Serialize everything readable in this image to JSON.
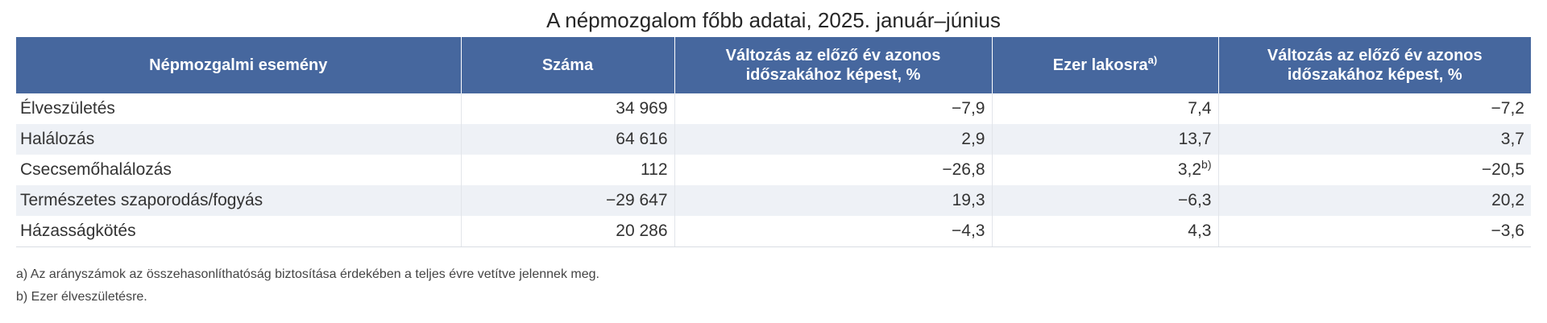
{
  "title": "A népmozgalom főbb adatai, 2025. január–június",
  "table": {
    "headers": [
      {
        "label": "Népmozgalmi esemény",
        "sup": ""
      },
      {
        "label": "Száma",
        "sup": ""
      },
      {
        "label": "Változás az előző év azonos időszakához képest, %",
        "sup": ""
      },
      {
        "label": "Ezer lakosra",
        "sup": "a)"
      },
      {
        "label": "Változás az előző év azonos időszakához képest, %",
        "sup": ""
      }
    ],
    "rows": [
      {
        "event": "Élveszületés",
        "count": "34 969",
        "change_count": "−7,9",
        "per_thousand": "7,4",
        "per_thousand_sup": "",
        "change_rate": "−7,2"
      },
      {
        "event": "Halálozás",
        "count": "64 616",
        "change_count": "2,9",
        "per_thousand": "13,7",
        "per_thousand_sup": "",
        "change_rate": "3,7"
      },
      {
        "event": "Csecsemőhalálozás",
        "count": "112",
        "change_count": "−26,8",
        "per_thousand": "3,2",
        "per_thousand_sup": "b)",
        "change_rate": "−20,5"
      },
      {
        "event": "Természetes szaporodás/fogyás",
        "count": "−29 647",
        "change_count": "19,3",
        "per_thousand": "−6,3",
        "per_thousand_sup": "",
        "change_rate": "20,2"
      },
      {
        "event": "Házasságkötés",
        "count": "20 286",
        "change_count": "−4,3",
        "per_thousand": "4,3",
        "per_thousand_sup": "",
        "change_rate": "−3,6"
      }
    ]
  },
  "notes": {
    "a": "a) Az arányszámok az összehasonlíthatóság biztosítása érdekében a teljes évre vetítve jelennek meg.",
    "b": "b) Ezer élveszületésre."
  },
  "colors": {
    "header_bg": "#46679e",
    "header_text": "#ffffff",
    "alt_row_bg": "#eef1f6"
  }
}
